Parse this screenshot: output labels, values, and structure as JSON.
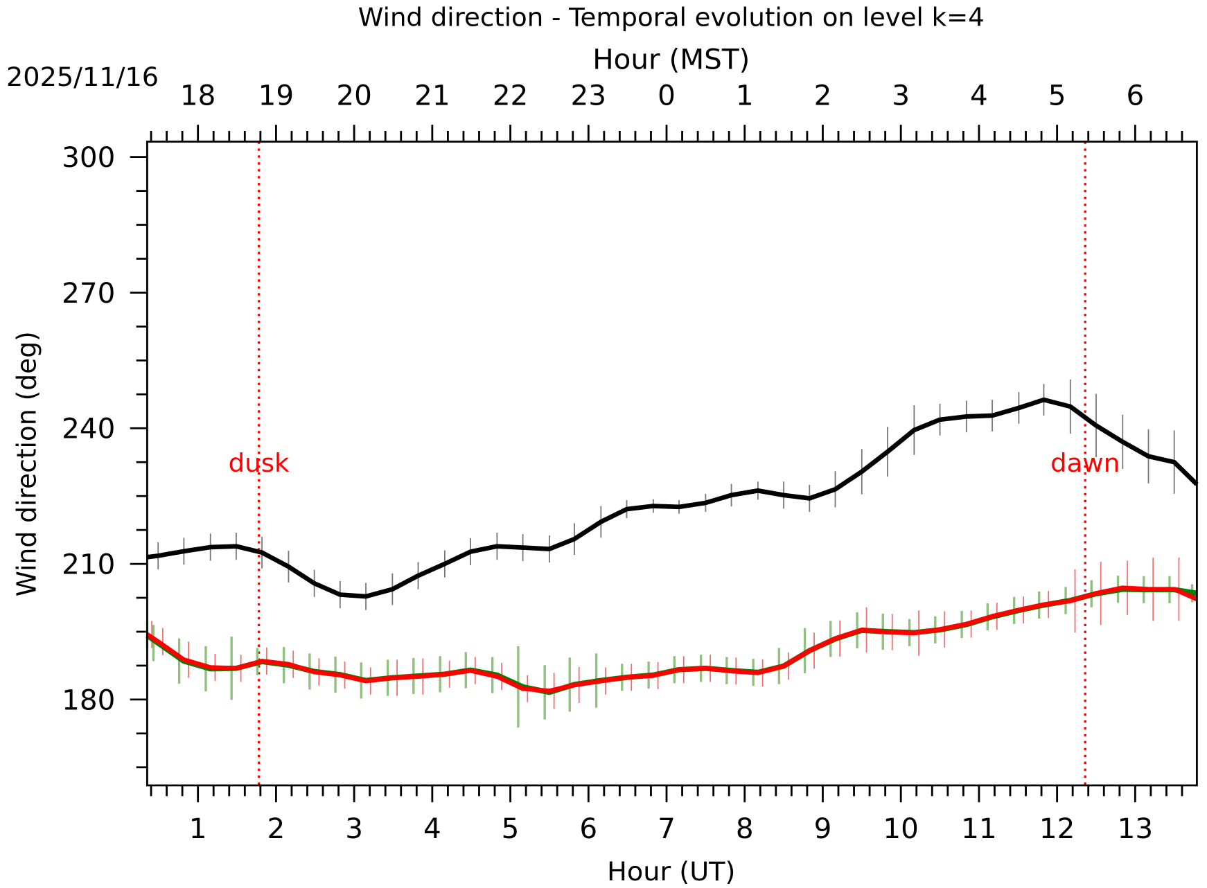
{
  "chart_data": {
    "type": "line",
    "title": "Wind direction - Temporal evolution on level k=4",
    "xlabel": "Hour (UT)",
    "x2label": "Hour (MST)",
    "date_label": "2025/11/16",
    "ylabel": "Wind direction (deg)",
    "xlim": [
      0.35,
      13.79
    ],
    "ylim": [
      161,
      303.4
    ],
    "x_ticks": [
      1,
      2,
      3,
      4,
      5,
      6,
      7,
      8,
      9,
      10,
      11,
      12,
      13
    ],
    "x_tick_labels": [
      "1",
      "2",
      "3",
      "4",
      "5",
      "6",
      "7",
      "8",
      "9",
      "10",
      "11",
      "12",
      "13"
    ],
    "x2_tick_labels": [
      "18",
      "19",
      "20",
      "21",
      "22",
      "23",
      "0",
      "1",
      "2",
      "3",
      "4",
      "5",
      "6"
    ],
    "y_ticks": [
      180,
      210,
      240,
      270,
      300
    ],
    "y_tick_labels": [
      "180",
      "210",
      "240",
      "270",
      "300"
    ],
    "grid": false,
    "annotations": [
      {
        "text": "dusk",
        "x": 1.78,
        "color": "#ff0000"
      },
      {
        "text": "dawn",
        "x": 12.36,
        "color": "#ff0000"
      }
    ],
    "x": [
      0.35,
      0.49,
      0.82,
      1.16,
      1.49,
      1.82,
      2.16,
      2.49,
      2.82,
      3.15,
      3.49,
      3.82,
      4.16,
      4.49,
      4.83,
      5.16,
      5.5,
      5.82,
      6.16,
      6.49,
      6.83,
      7.16,
      7.5,
      7.83,
      8.17,
      8.5,
      8.83,
      9.16,
      9.5,
      9.83,
      10.17,
      10.5,
      10.84,
      11.17,
      11.51,
      11.83,
      12.17,
      12.5,
      12.84,
      13.17,
      13.5,
      13.79
    ],
    "series": [
      {
        "name": "black",
        "color": "#000000",
        "values": [
          211.5,
          211.8,
          212.8,
          213.7,
          213.9,
          212.5,
          209.4,
          205.7,
          203.2,
          202.8,
          204.4,
          207.4,
          210.0,
          212.7,
          213.9,
          213.6,
          213.3,
          215.5,
          219.3,
          222.1,
          222.8,
          222.6,
          223.5,
          225.2,
          226.2,
          225.2,
          224.5,
          226.5,
          230.4,
          234.8,
          239.6,
          241.9,
          242.6,
          242.8,
          244.5,
          246.3,
          244.8,
          240.6,
          237.0,
          233.8,
          232.5,
          227.6
        ],
        "error": [
          3,
          3,
          3,
          3,
          3,
          3.5,
          3.5,
          3,
          3,
          3,
          3.5,
          3,
          3,
          3,
          3,
          3,
          3,
          3.5,
          3.5,
          2,
          1.5,
          1.5,
          2,
          2.5,
          2,
          3,
          3,
          4,
          5,
          5.5,
          5.5,
          3.5,
          3.5,
          3.5,
          3.5,
          3.5,
          6,
          7,
          6,
          6,
          7,
          6
        ]
      },
      {
        "name": "green",
        "color": "#008000",
        "error_color": "#90c080",
        "values": [
          194.2,
          192.5,
          188.5,
          186.8,
          186.9,
          188.4,
          187.6,
          186.2,
          185.5,
          184.2,
          184.8,
          185.2,
          185.6,
          186.5,
          185.4,
          182.8,
          181.6,
          183.3,
          184.2,
          184.9,
          185.4,
          186.6,
          186.9,
          186.4,
          186.0,
          187.4,
          190.8,
          193.4,
          195.3,
          195.0,
          194.8,
          195.4,
          196.6,
          198.3,
          199.7,
          200.9,
          201.9,
          203.4,
          204.4,
          204.3,
          204.3,
          203.5
        ],
        "error": [
          3,
          4,
          5,
          5,
          7,
          3,
          4,
          4,
          4,
          4,
          4,
          4,
          4,
          4,
          4,
          9,
          6,
          6,
          6,
          3,
          3,
          3,
          3,
          3,
          3,
          4,
          5,
          4,
          4,
          4,
          3,
          3,
          3,
          3,
          3,
          3,
          3,
          3,
          3,
          3,
          3,
          2
        ]
      },
      {
        "name": "red",
        "color": "#ff0000",
        "error_color": "#f07070",
        "values": [
          194.4,
          192.8,
          188.8,
          187.1,
          186.9,
          188.5,
          187.8,
          186.1,
          185.4,
          184.1,
          184.8,
          185.1,
          185.6,
          186.4,
          185.1,
          182.4,
          181.9,
          183.2,
          184.1,
          184.9,
          185.3,
          186.6,
          186.9,
          186.3,
          185.9,
          187.4,
          190.8,
          193.5,
          195.4,
          194.9,
          194.7,
          195.5,
          196.7,
          198.4,
          199.8,
          201.0,
          201.8,
          203.5,
          204.7,
          204.4,
          204.4,
          202.2
        ],
        "error": [
          3,
          3,
          4,
          3,
          3,
          3,
          3,
          3,
          3,
          3,
          4,
          4,
          3,
          3,
          3,
          3,
          4,
          4,
          3,
          3,
          3,
          3,
          3,
          3,
          3,
          3,
          4,
          4,
          5,
          4,
          5,
          4,
          3,
          3,
          3,
          3,
          7,
          7,
          6,
          7,
          7,
          3
        ]
      }
    ]
  }
}
